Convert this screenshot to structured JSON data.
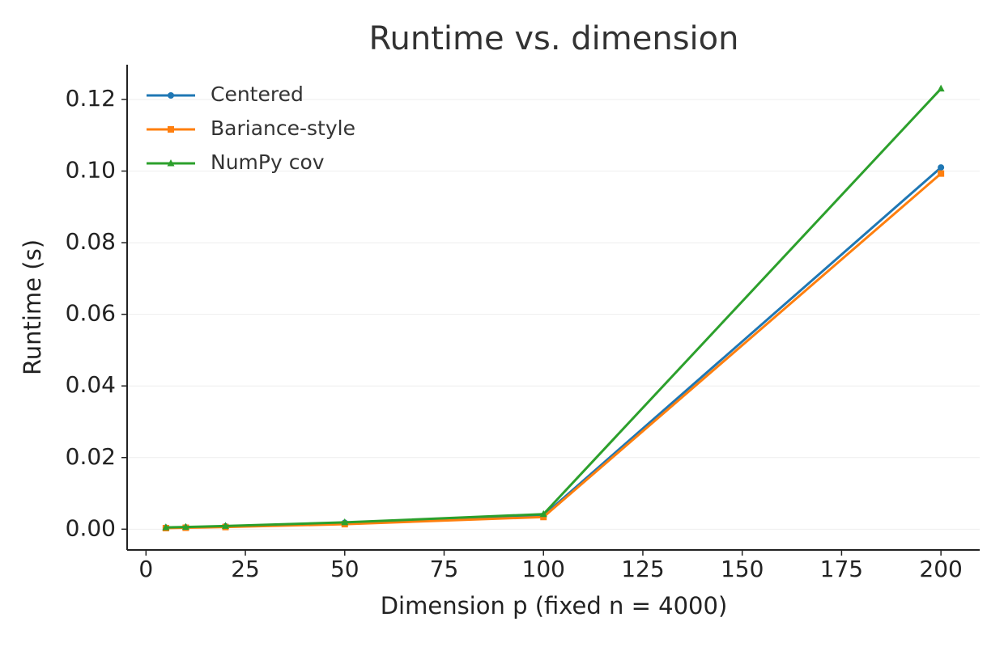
{
  "chart_data": {
    "type": "line",
    "title": "Runtime vs. dimension",
    "xlabel": "Dimension p  (fixed n = 4000)",
    "ylabel": "Runtime (s)",
    "x": [
      5,
      10,
      20,
      50,
      100,
      200
    ],
    "series": [
      {
        "name": "Centered",
        "color": "#1f77b4",
        "marker": "circle",
        "values": [
          0.0004,
          0.0005,
          0.0008,
          0.0018,
          0.0038,
          0.101
        ]
      },
      {
        "name": "Bariance-style",
        "color": "#ff7f0e",
        "marker": "square",
        "values": [
          0.0003,
          0.0004,
          0.0006,
          0.0014,
          0.0034,
          0.0993
        ]
      },
      {
        "name": "NumPy cov",
        "color": "#2ca02c",
        "marker": "triangle",
        "values": [
          0.0005,
          0.0006,
          0.0009,
          0.0019,
          0.0042,
          0.123
        ]
      }
    ],
    "xlim": [
      -4.75,
      209.75
    ],
    "xticks": [
      0,
      25,
      50,
      75,
      100,
      125,
      150,
      175,
      200
    ],
    "ylim": [
      -0.0058,
      0.1297
    ],
    "yticks": [
      {
        "value": 0,
        "label": "0.00"
      },
      {
        "value": 0.02,
        "label": "0.02"
      },
      {
        "value": 0.04,
        "label": "0.04"
      },
      {
        "value": 0.06,
        "label": "0.06"
      },
      {
        "value": 0.08,
        "label": "0.08"
      },
      {
        "value": 0.1,
        "label": "0.10"
      },
      {
        "value": 0.12,
        "label": "0.12"
      }
    ],
    "grid": true,
    "legend": "upper-left"
  }
}
